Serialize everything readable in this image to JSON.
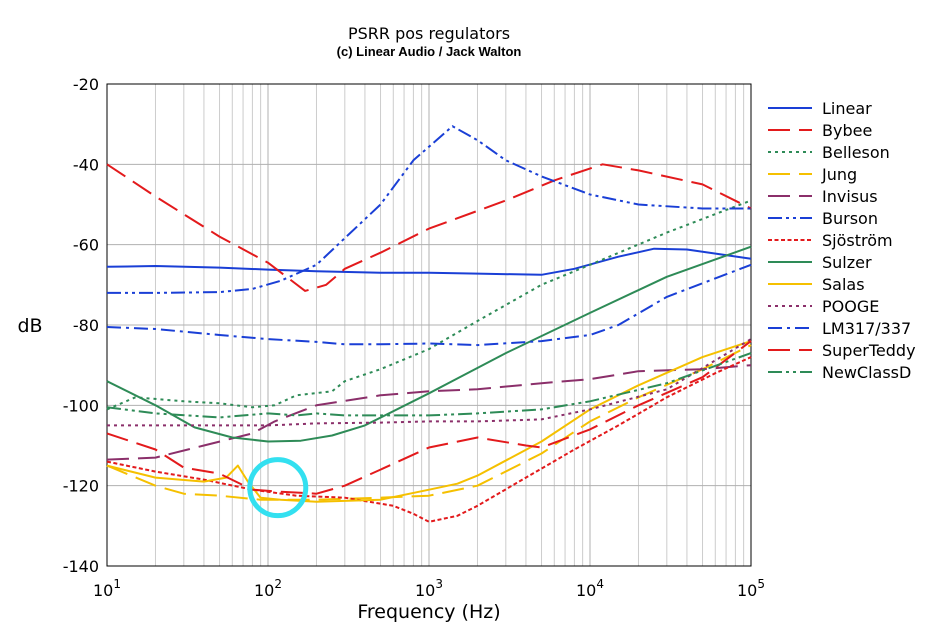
{
  "chart_data": {
    "type": "line",
    "title": "PSRR pos regulators",
    "subtitle": "(c) Linear Audio / Jack Walton",
    "xlabel": "Frequency (Hz)",
    "ylabel": "dB",
    "xscale": "log",
    "xlim": [
      10,
      100000
    ],
    "ylim": [
      -140,
      -20
    ],
    "grid": true,
    "legend_position": "right",
    "x_ticks": [
      {
        "base": "10",
        "exp": "1",
        "value": 10
      },
      {
        "base": "10",
        "exp": "2",
        "value": 100
      },
      {
        "base": "10",
        "exp": "3",
        "value": 1000
      },
      {
        "base": "10",
        "exp": "4",
        "value": 10000
      },
      {
        "base": "10",
        "exp": "5",
        "value": 100000
      }
    ],
    "y_ticks": [
      "-20",
      "-40",
      "-60",
      "-80",
      "-100",
      "-120",
      "-140"
    ],
    "highlight": {
      "shape": "circle",
      "color": "#33e0f0",
      "x": 115,
      "y": -120.5
    },
    "series": [
      {
        "name": "Linear",
        "color": "#1a3fd6",
        "dash": "solid",
        "points": [
          [
            10,
            -65.5
          ],
          [
            20,
            -65.3
          ],
          [
            50,
            -65.7
          ],
          [
            100,
            -66.2
          ],
          [
            200,
            -66.6
          ],
          [
            500,
            -67.0
          ],
          [
            1000,
            -67.0
          ],
          [
            2000,
            -67.2
          ],
          [
            5000,
            -67.5
          ],
          [
            8000,
            -66
          ],
          [
            15000,
            -63
          ],
          [
            25000,
            -61
          ],
          [
            40000,
            -61.2
          ],
          [
            100000,
            -63.5
          ]
        ]
      },
      {
        "name": "Bybee",
        "color": "#e31a1c",
        "dash": "long",
        "points": [
          [
            10,
            -40
          ],
          [
            20,
            -48
          ],
          [
            50,
            -58
          ],
          [
            100,
            -64.5
          ],
          [
            170,
            -71.5
          ],
          [
            230,
            -70
          ],
          [
            300,
            -66
          ],
          [
            500,
            -62
          ],
          [
            1000,
            -56
          ],
          [
            3000,
            -49
          ],
          [
            6000,
            -44
          ],
          [
            12000,
            -40
          ],
          [
            20000,
            -41.5
          ],
          [
            50000,
            -45
          ],
          [
            100000,
            -51
          ]
        ]
      },
      {
        "name": "Belleson",
        "color": "#2e8b57",
        "dash": "dot",
        "points": [
          [
            10,
            -101
          ],
          [
            15,
            -98
          ],
          [
            30,
            -99
          ],
          [
            50,
            -99.5
          ],
          [
            80,
            -100.5
          ],
          [
            110,
            -100
          ],
          [
            150,
            -97.5
          ],
          [
            250,
            -96.5
          ],
          [
            300,
            -94
          ],
          [
            500,
            -91
          ],
          [
            1000,
            -86
          ],
          [
            2000,
            -79
          ],
          [
            5000,
            -70
          ],
          [
            10000,
            -65
          ],
          [
            30000,
            -57
          ],
          [
            100000,
            -49
          ]
        ]
      },
      {
        "name": "Jung",
        "color": "#f5c000",
        "dash": "long",
        "points": [
          [
            10,
            -115
          ],
          [
            20,
            -120
          ],
          [
            30,
            -122
          ],
          [
            50,
            -122.5
          ],
          [
            90,
            -123.5
          ],
          [
            200,
            -123.5
          ],
          [
            500,
            -123
          ],
          [
            1000,
            -122.5
          ],
          [
            2000,
            -120
          ],
          [
            5000,
            -112
          ],
          [
            10000,
            -104
          ],
          [
            20000,
            -98
          ],
          [
            50000,
            -91
          ],
          [
            100000,
            -85
          ]
        ]
      },
      {
        "name": "Invisus",
        "color": "#8b2f6a",
        "dash": "long",
        "points": [
          [
            10,
            -113.5
          ],
          [
            20,
            -113
          ],
          [
            40,
            -110
          ],
          [
            80,
            -107
          ],
          [
            110,
            -104
          ],
          [
            200,
            -100
          ],
          [
            500,
            -97.5
          ],
          [
            1000,
            -96.5
          ],
          [
            2000,
            -96
          ],
          [
            5000,
            -94.5
          ],
          [
            10000,
            -93.5
          ],
          [
            20000,
            -91.5
          ],
          [
            50000,
            -91
          ],
          [
            100000,
            -90
          ]
        ]
      },
      {
        "name": "Burson",
        "color": "#1a3fd6",
        "dash": "dashdotdot",
        "points": [
          [
            10,
            -72
          ],
          [
            20,
            -72
          ],
          [
            50,
            -71.8
          ],
          [
            80,
            -71
          ],
          [
            120,
            -69
          ],
          [
            200,
            -65
          ],
          [
            500,
            -50
          ],
          [
            800,
            -39
          ],
          [
            1400,
            -30.5
          ],
          [
            2000,
            -34
          ],
          [
            3000,
            -39
          ],
          [
            5000,
            -43
          ],
          [
            10000,
            -47.5
          ],
          [
            20000,
            -50
          ],
          [
            50000,
            -51
          ],
          [
            100000,
            -51
          ]
        ]
      },
      {
        "name": "Sjöström",
        "color": "#e31a1c",
        "dash": "dense",
        "points": [
          [
            10,
            -114
          ],
          [
            20,
            -116.5
          ],
          [
            40,
            -118.5
          ],
          [
            80,
            -121
          ],
          [
            150,
            -122.5
          ],
          [
            300,
            -123
          ],
          [
            600,
            -125
          ],
          [
            800,
            -127
          ],
          [
            1000,
            -129
          ],
          [
            1500,
            -127.5
          ],
          [
            2000,
            -125
          ],
          [
            4000,
            -118
          ],
          [
            8000,
            -111
          ],
          [
            15000,
            -105
          ],
          [
            30000,
            -98
          ],
          [
            60000,
            -92
          ],
          [
            100000,
            -88
          ]
        ]
      },
      {
        "name": "Sulzer",
        "color": "#2e8b57",
        "dash": "solid",
        "points": [
          [
            10,
            -94
          ],
          [
            20,
            -100
          ],
          [
            35,
            -105.5
          ],
          [
            60,
            -108
          ],
          [
            100,
            -109
          ],
          [
            160,
            -108.8
          ],
          [
            250,
            -107.5
          ],
          [
            400,
            -105
          ],
          [
            1000,
            -97
          ],
          [
            3000,
            -87
          ],
          [
            10000,
            -77
          ],
          [
            30000,
            -68
          ],
          [
            100000,
            -60.5
          ]
        ]
      },
      {
        "name": "Salas",
        "color": "#f5c000",
        "dash": "solid",
        "points": [
          [
            10,
            -115
          ],
          [
            20,
            -118
          ],
          [
            40,
            -119
          ],
          [
            55,
            -118
          ],
          [
            65,
            -115
          ],
          [
            75,
            -119
          ],
          [
            90,
            -123
          ],
          [
            120,
            -123.5
          ],
          [
            200,
            -124
          ],
          [
            500,
            -123.5
          ],
          [
            1000,
            -121
          ],
          [
            1500,
            -119.5
          ],
          [
            2000,
            -117.5
          ],
          [
            5000,
            -109
          ],
          [
            10000,
            -101
          ],
          [
            20000,
            -95
          ],
          [
            50000,
            -88
          ],
          [
            100000,
            -84
          ]
        ]
      },
      {
        "name": "POOGE",
        "color": "#8b2f6a",
        "dash": "dot",
        "points": [
          [
            10,
            -105
          ],
          [
            20,
            -105
          ],
          [
            50,
            -105
          ],
          [
            100,
            -105
          ],
          [
            200,
            -104.5
          ],
          [
            500,
            -104.3
          ],
          [
            1000,
            -104
          ],
          [
            2000,
            -104
          ],
          [
            5000,
            -103.5
          ],
          [
            10000,
            -101
          ],
          [
            30000,
            -96
          ],
          [
            100000,
            -83.5
          ]
        ]
      },
      {
        "name": "LM317/337",
        "color": "#1a3fd6",
        "dash": "dashdot",
        "points": [
          [
            10,
            -80.5
          ],
          [
            20,
            -81
          ],
          [
            50,
            -82.5
          ],
          [
            100,
            -83.5
          ],
          [
            200,
            -84.2
          ],
          [
            300,
            -84.8
          ],
          [
            500,
            -84.8
          ],
          [
            1000,
            -84.6
          ],
          [
            2000,
            -85
          ],
          [
            5000,
            -84
          ],
          [
            10000,
            -82.5
          ],
          [
            15000,
            -80
          ],
          [
            30000,
            -73
          ],
          [
            100000,
            -65
          ]
        ]
      },
      {
        "name": "SuperTeddy",
        "color": "#e31a1c",
        "dash": "long",
        "points": [
          [
            10,
            -107
          ],
          [
            20,
            -111
          ],
          [
            30,
            -115.5
          ],
          [
            50,
            -117
          ],
          [
            80,
            -121
          ],
          [
            120,
            -121.5
          ],
          [
            200,
            -122
          ],
          [
            300,
            -120
          ],
          [
            500,
            -116
          ],
          [
            1000,
            -110.5
          ],
          [
            2000,
            -108
          ],
          [
            4000,
            -110
          ],
          [
            5000,
            -110.5
          ],
          [
            10000,
            -106
          ],
          [
            20000,
            -100
          ],
          [
            50000,
            -93
          ],
          [
            100000,
            -84
          ]
        ]
      },
      {
        "name": "NewClassD",
        "color": "#2e8b57",
        "dash": "dashdotdot",
        "points": [
          [
            10,
            -100.5
          ],
          [
            20,
            -102
          ],
          [
            50,
            -103
          ],
          [
            100,
            -102
          ],
          [
            150,
            -102.5
          ],
          [
            200,
            -102
          ],
          [
            300,
            -102.5
          ],
          [
            500,
            -102.5
          ],
          [
            1000,
            -102.5
          ],
          [
            2000,
            -102
          ],
          [
            5000,
            -101
          ],
          [
            10000,
            -99
          ],
          [
            30000,
            -94.5
          ],
          [
            100000,
            -87
          ]
        ]
      }
    ]
  }
}
